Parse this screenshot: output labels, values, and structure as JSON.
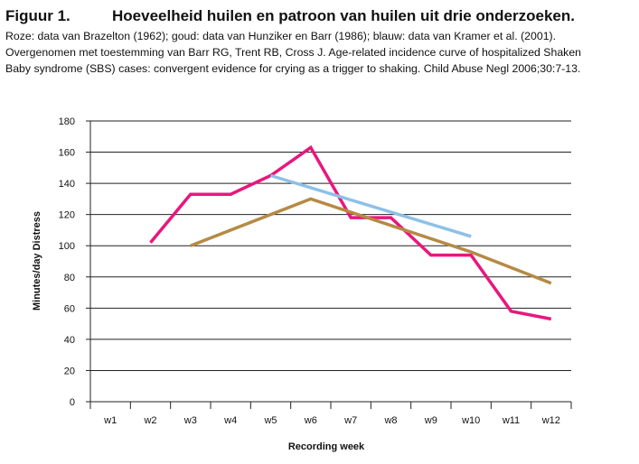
{
  "figure": {
    "label": "Figuur 1.",
    "title": "Hoeveelheid huilen en patroon van huilen uit drie onderzoeken.",
    "caption_lines": [
      "Roze: data van Brazelton (1962); goud: data van Hunziker en Barr (1986); blauw: data van Kramer et al. (2001).",
      "Overgenomen met toestemming van Barr RG, Trent RB, Cross J. Age-related incidence curve of hospitalized Shaken",
      "Baby syndrome (SBS) cases: convergent evidence for crying as a trigger to shaking. Child Abuse Negl 2006;30:7-13."
    ]
  },
  "chart_data": {
    "type": "line",
    "xlabel": "Recording week",
    "ylabel": "Minutes/day Distress",
    "categories": [
      "w1",
      "w2",
      "w3",
      "w4",
      "w5",
      "w6",
      "w7",
      "w8",
      "w9",
      "w10",
      "w11",
      "w12"
    ],
    "ylim": [
      0,
      180
    ],
    "yticks": [
      0,
      20,
      40,
      60,
      80,
      100,
      120,
      140,
      160,
      180
    ],
    "grid": "horizontal",
    "legend": "none",
    "series": [
      {
        "color": "#e8177d",
        "points": [
          [
            2,
            102
          ],
          [
            3,
            133
          ],
          [
            4,
            133
          ],
          [
            5,
            145
          ],
          [
            6,
            163
          ],
          [
            7,
            118
          ],
          [
            8,
            118
          ],
          [
            9,
            94
          ],
          [
            10,
            94
          ],
          [
            11,
            58
          ],
          [
            12,
            53
          ]
        ]
      },
      {
        "color": "#b58a45",
        "points": [
          [
            3,
            100
          ],
          [
            6,
            130
          ],
          [
            10,
            96
          ],
          [
            12,
            76
          ]
        ]
      },
      {
        "color": "#8dc1e6",
        "points": [
          [
            5,
            145
          ],
          [
            10,
            106
          ]
        ]
      }
    ]
  }
}
